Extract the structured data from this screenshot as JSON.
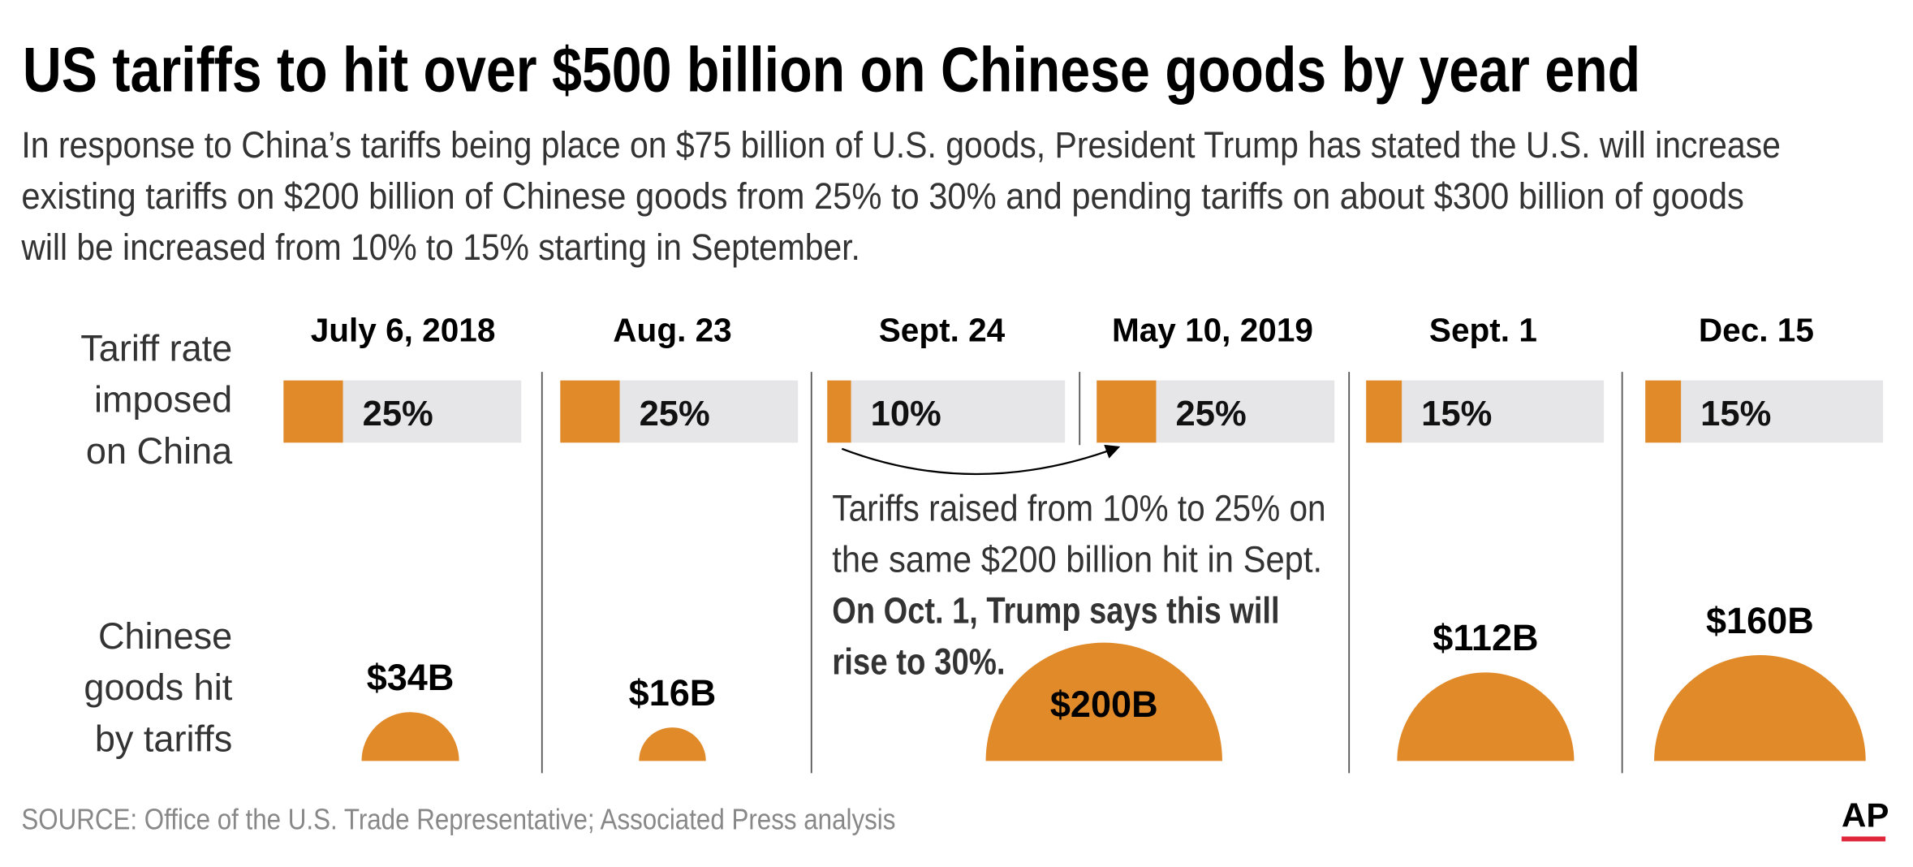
{
  "chart_data": {
    "type": "tariff-timeline",
    "title": "US tariffs to hit over $500 billion on Chinese goods by year end",
    "subtitle": [
      "In response to China’s tariffs being place on $75 billion of U.S. goods, President Trump has stated the U.S. will increase",
      "existing tariffs on $200 billion of Chinese goods from 25% to 30% and pending tariffs on about $300 billion of goods",
      "will be increased from 10% to 15% starting in September."
    ],
    "row_labels": {
      "rate": [
        "Tariff rate",
        "imposed",
        "on China"
      ],
      "goods": [
        "Chinese",
        "goods hit",
        "by tariffs"
      ]
    },
    "categories": [
      "July 6, 2018",
      "Aug. 23",
      "Sept. 24",
      "May 10, 2019",
      "Sept. 1",
      "Dec. 15"
    ],
    "rates": {
      "values": [
        25,
        25,
        10,
        25,
        15,
        15
      ],
      "value_labels": [
        "25%",
        "25%",
        "10%",
        "25%",
        "15%",
        "15%"
      ],
      "xlim": [
        0,
        100
      ],
      "color": "#e08a2a",
      "track_color": "#e6e6e8"
    },
    "goods": {
      "values": [
        34,
        16,
        200,
        112,
        160
      ],
      "value_labels": [
        "$34B",
        "$16B",
        "$200B",
        "$112B",
        "$160B"
      ],
      "color": "#e08a2a"
    },
    "annotation": {
      "text": [
        "Tariffs raised from 10% to 25% on",
        "the same $200 billion hit in Sept."
      ],
      "bold": [
        "On Oct. 1, Trump says this will",
        "rise to 30%."
      ]
    },
    "source": "SOURCE: Office of the U.S. Trade Representative; Associated Press analysis",
    "logo": "AP"
  }
}
